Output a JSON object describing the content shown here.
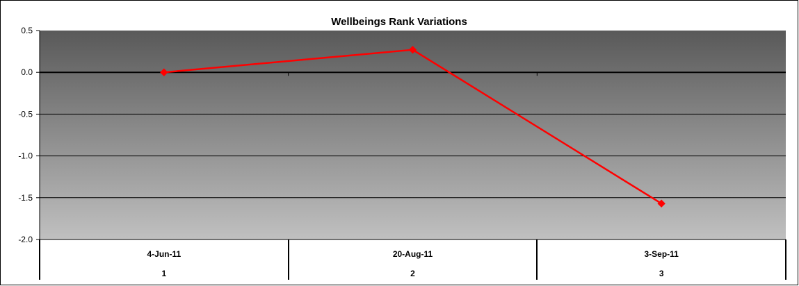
{
  "chart_data": {
    "type": "line",
    "title": "Wellbeings Rank Variations",
    "xlabel": "",
    "ylabel": "",
    "ylim": [
      -2.0,
      0.5
    ],
    "yticks": [
      0.5,
      0.0,
      -0.5,
      -1.0,
      -1.5,
      -2.0
    ],
    "ytick_labels": [
      "0.5",
      "0.0",
      "-0.5",
      "-1.0",
      "-1.5",
      "-2.0"
    ],
    "grid": true,
    "legend": "none",
    "categories": [
      {
        "date": "4-Jun-11",
        "index": "1"
      },
      {
        "date": "20-Aug-11",
        "index": "2"
      },
      {
        "date": "3-Sep-11",
        "index": "3"
      }
    ],
    "series": [
      {
        "values": [
          0.0,
          0.27,
          -1.57
        ],
        "color": "#ff0000",
        "marker": "diamond"
      }
    ],
    "colors": {
      "plot_top": "#595959",
      "plot_bottom": "#c0c0c0",
      "line": "#ff0000",
      "marker": "#ff0000"
    }
  }
}
